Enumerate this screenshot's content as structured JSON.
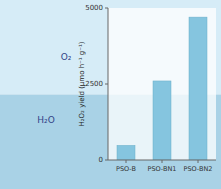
{
  "chart_data": {
    "type": "bar",
    "categories": [
      "PSO-B",
      "PSO-BN1",
      "PSO-BN2"
    ],
    "values": [
      480,
      2600,
      4700
    ],
    "color": "#85c5df",
    "ylabel": "H₂O₂ yield (μmo h⁻¹ g⁻¹)",
    "ylim": [
      0,
      5000
    ],
    "yticks": [
      0,
      2500,
      5000
    ],
    "grid": false,
    "annotations": [
      "O₂",
      "H₂O"
    ]
  }
}
